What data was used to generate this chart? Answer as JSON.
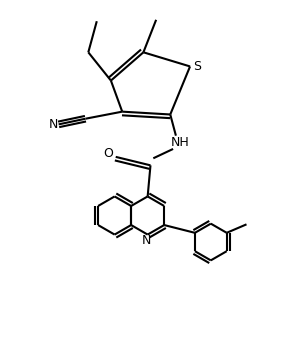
{
  "bg_color": "#ffffff",
  "line_color": "#000000",
  "line_width": 1.5,
  "figsize": [
    2.84,
    3.42
  ],
  "dpi": 100,
  "xlim": [
    0,
    10
  ],
  "ylim": [
    0,
    12
  ]
}
